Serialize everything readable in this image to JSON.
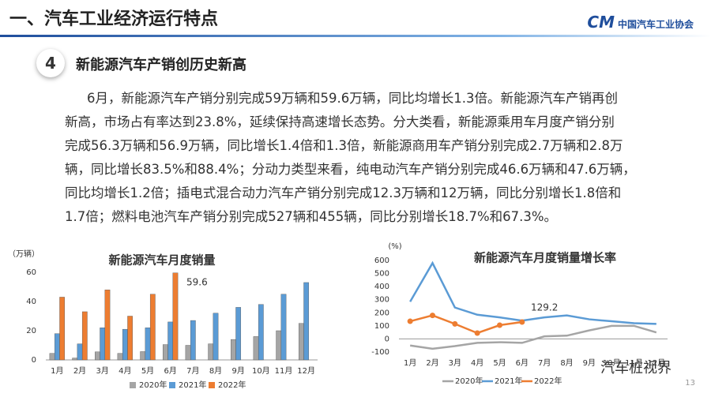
{
  "header": {
    "title": "一、汽车工业经济运行特点",
    "logo": "中国汽车工业协会"
  },
  "section": {
    "number": "4",
    "title": "新能源汽车产销创历史新高"
  },
  "paragraph": [
    "6月，新能源汽车产销分别完成59万辆和59.6万辆，同比均增长1.3倍。新能源汽车产销再创",
    "新高，市场占有率达到23.8%，延续保持高速增长态势。分大类看，新能源乘用车月度产销分别",
    "完成56.3万辆和56.9万辆，同比增长1.4倍和1.3倍，新能源商用车产销分别完成2.7万辆和2.8万",
    "辆，同比增长83.5%和88.4%；分动力类型来看，纯电动汽车产销分别完成46.6万辆和47.6万辆，",
    "同比均增长1.2倍；插电式混合动力汽车产销分别完成12.3万辆和12万辆，同比分别增长1.8倍和",
    "1.7倍；燃料电池汽车产销分别完成527辆和455辆，同比分别增长18.7%和67.3%。"
  ],
  "chart_data": [
    {
      "type": "bar",
      "title": "新能源汽车月度销量",
      "y_label": "（万辆）",
      "annotation": "59.6",
      "categories": [
        "1月",
        "2月",
        "3月",
        "4月",
        "5月",
        "6月",
        "7月",
        "8月",
        "9月",
        "10月",
        "11月",
        "12月"
      ],
      "series": [
        {
          "name": "2020年",
          "color": "#a5a5a5",
          "values": [
            4.5,
            1.3,
            5.5,
            4.5,
            5.7,
            10.5,
            10,
            11,
            14,
            16,
            20,
            25
          ]
        },
        {
          "name": "2021年",
          "color": "#5b9bd5",
          "values": [
            18,
            11,
            22,
            21,
            22,
            26,
            27,
            32,
            36,
            38,
            45,
            53
          ]
        },
        {
          "name": "2022年",
          "color": "#ed7d31",
          "values": [
            43,
            33,
            48,
            30,
            45,
            59.6,
            null,
            null,
            null,
            null,
            null,
            null
          ]
        }
      ],
      "ylim": [
        0,
        60
      ],
      "yticks": [
        0,
        20,
        40,
        60
      ],
      "grid": false
    },
    {
      "type": "line",
      "title": "新能源汽车月度销量增长率",
      "y_label": "(%)",
      "annotation": "129.2",
      "categories": [
        "1月",
        "2月",
        "3月",
        "4月",
        "5月",
        "6月",
        "7月",
        "8月",
        "9月",
        "10月",
        "11月",
        "12月"
      ],
      "series": [
        {
          "name": "2020年",
          "color": "#a5a5a5",
          "values": [
            -50,
            -75,
            -55,
            -30,
            -25,
            -30,
            20,
            25,
            65,
            100,
            100,
            50
          ]
        },
        {
          "name": "2021年",
          "color": "#5b9bd5",
          "values": [
            285,
            580,
            240,
            185,
            165,
            140,
            165,
            180,
            150,
            135,
            120,
            115
          ]
        },
        {
          "name": "2022年",
          "color": "#ed7d31",
          "marker": "circle",
          "values": [
            135,
            180,
            115,
            45,
            105,
            129.2,
            null,
            null,
            null,
            null,
            null,
            null
          ]
        }
      ],
      "ylim": [
        -100,
        600
      ],
      "yticks": [
        -100,
        0,
        100,
        200,
        300,
        400,
        500,
        600
      ],
      "grid": false
    }
  ],
  "watermark": "汽车桩视界",
  "page_number": "13"
}
